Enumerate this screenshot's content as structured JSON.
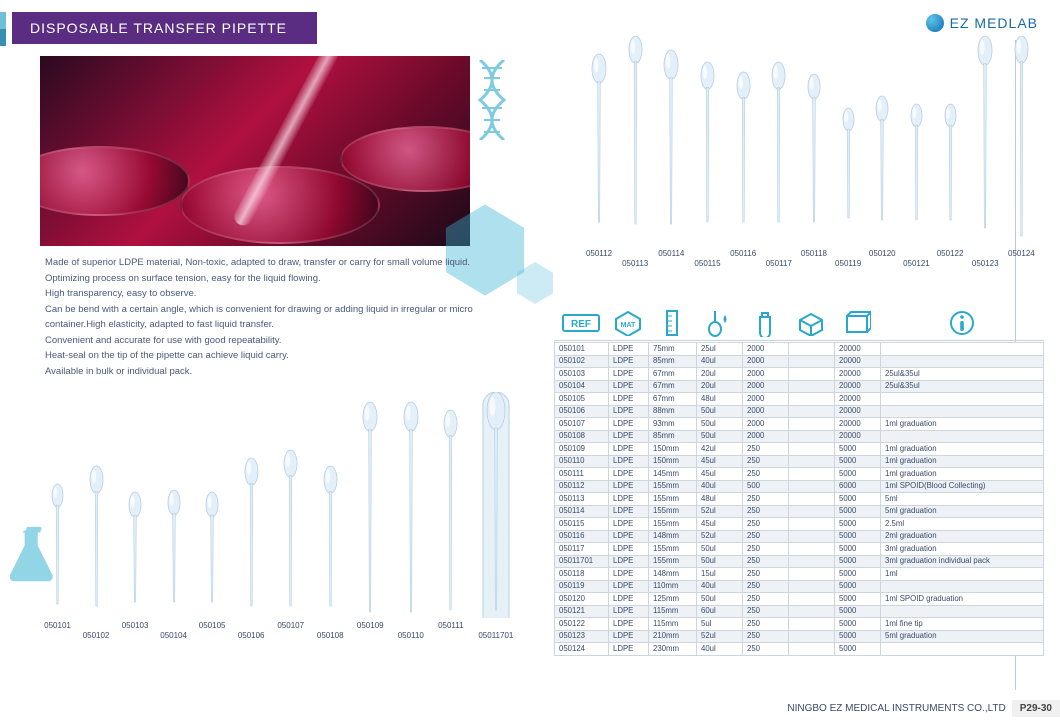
{
  "title": "DISPOSABLE  TRANSFER PIPETTE",
  "brand": "EZ MEDLAB",
  "footer_company": "NINGBO EZ MEDICAL INSTRUMENTS CO.,LTD",
  "footer_page": "P29-30",
  "colors": {
    "title_bg": "#5b2d82",
    "accent": "#2aa8cc",
    "text": "#3a4a6a",
    "row_alt": "#eef2f6",
    "border": "#cdd6dd"
  },
  "description": [
    "Made of superior LDPE material, Non-toxic, adapted to draw, transfer or carry for small volume liquid.",
    "Optimizing process on surface tension, easy for the liquid flowing.",
    "High transparency, easy to observe.",
    "Can be bend with a certain angle, which is convenient for drawing or adding liquid in irregular or micro container.High elasticity, adapted to fast liquid transfer.",
    "Convenient and accurate for use with good repeatability.",
    "Heat-seal on the tip of the pipette can achieve  liquid carry.",
    "Available in bulk or individual pack."
  ],
  "pipettes_top": [
    {
      "id": "050112",
      "bulb": 14,
      "stem": 168,
      "off": 18
    },
    {
      "id": "050113",
      "bulb": 13,
      "stem": 188,
      "off": 0
    },
    {
      "id": "050114",
      "bulb": 14,
      "stem": 174,
      "off": 14
    },
    {
      "id": "050115",
      "bulb": 13,
      "stem": 160,
      "off": 26
    },
    {
      "id": "050116",
      "bulb": 13,
      "stem": 150,
      "off": 36
    },
    {
      "id": "050117",
      "bulb": 13,
      "stem": 160,
      "off": 26
    },
    {
      "id": "050118",
      "bulb": 12,
      "stem": 148,
      "off": 38
    },
    {
      "id": "050119",
      "bulb": 11,
      "stem": 110,
      "off": 72
    },
    {
      "id": "050120",
      "bulb": 12,
      "stem": 124,
      "off": 60
    },
    {
      "id": "050121",
      "bulb": 11,
      "stem": 116,
      "off": 68
    },
    {
      "id": "050122",
      "bulb": 11,
      "stem": 116,
      "off": 68
    },
    {
      "id": "050123",
      "bulb": 14,
      "stem": 192,
      "off": 0
    },
    {
      "id": "050124",
      "bulb": 13,
      "stem": 200,
      "off": 0
    }
  ],
  "pipettes_bottom": [
    {
      "id": "050101",
      "bulb": 11,
      "stem": 120,
      "off": 92
    },
    {
      "id": "050102",
      "bulb": 13,
      "stem": 140,
      "off": 74
    },
    {
      "id": "050103",
      "bulb": 12,
      "stem": 110,
      "off": 100
    },
    {
      "id": "050104",
      "bulb": 12,
      "stem": 112,
      "off": 98
    },
    {
      "id": "050105",
      "bulb": 12,
      "stem": 110,
      "off": 100
    },
    {
      "id": "050106",
      "bulb": 13,
      "stem": 148,
      "off": 66
    },
    {
      "id": "050107",
      "bulb": 13,
      "stem": 156,
      "off": 58
    },
    {
      "id": "050108",
      "bulb": 13,
      "stem": 140,
      "off": 74
    },
    {
      "id": "050109",
      "bulb": 14,
      "stem": 210,
      "off": 10
    },
    {
      "id": "050110",
      "bulb": 14,
      "stem": 210,
      "off": 10
    },
    {
      "id": "050111",
      "bulb": 13,
      "stem": 200,
      "off": 18
    },
    {
      "id": "0501170",
      "bulb": 18,
      "stem": 218,
      "off": 0,
      "pack": true,
      "label": "05011701"
    }
  ],
  "table": {
    "header_icons": [
      "REF",
      "MAT",
      "ruler",
      "drop",
      "bottle",
      "box",
      "carton",
      "info"
    ],
    "rows": [
      [
        "050101",
        "LDPE",
        "75mm",
        "25ul",
        "2000",
        "",
        "20000",
        ""
      ],
      [
        "050102",
        "LDPE",
        "85mm",
        "40ul",
        "2000",
        "",
        "20000",
        ""
      ],
      [
        "050103",
        "LDPE",
        "67mm",
        "20ul",
        "2000",
        "",
        "20000",
        "25ul&35ul"
      ],
      [
        "050104",
        "LDPE",
        "67mm",
        "20ul",
        "2000",
        "",
        "20000",
        "25ul&35ul"
      ],
      [
        "050105",
        "LDPE",
        "67mm",
        "48ul",
        "2000",
        "",
        "20000",
        ""
      ],
      [
        "050106",
        "LDPE",
        "88mm",
        "50ul",
        "2000",
        "",
        "20000",
        ""
      ],
      [
        "050107",
        "LDPE",
        "93mm",
        "50ul",
        "2000",
        "",
        "20000",
        "1ml graduation"
      ],
      [
        "050108",
        "LDPE",
        "85mm",
        "50ul",
        "2000",
        "",
        "20000",
        ""
      ],
      [
        "050109",
        "LDPE",
        "150mm",
        "42ul",
        "250",
        "",
        "5000",
        "1ml graduation"
      ],
      [
        "050110",
        "LDPE",
        "150mm",
        "45ul",
        "250",
        "",
        "5000",
        "1ml graduation"
      ],
      [
        "050111",
        "LDPE",
        "145mm",
        "45ul",
        "250",
        "",
        "5000",
        "1ml graduation"
      ],
      [
        "050112",
        "LDPE",
        "155mm",
        "40ul",
        "500",
        "",
        "6000",
        "1ml SPOID(Blood Collecting)"
      ],
      [
        "050113",
        "LDPE",
        "155mm",
        "48ul",
        "250",
        "",
        "5000",
        "5ml"
      ],
      [
        "050114",
        "LDPE",
        "155mm",
        "52ul",
        "250",
        "",
        "5000",
        "5ml graduation"
      ],
      [
        "050115",
        "LDPE",
        "155mm",
        "45ul",
        "250",
        "",
        "5000",
        "2.5ml"
      ],
      [
        "050116",
        "LDPE",
        "148mm",
        "52ul",
        "250",
        "",
        "5000",
        "2ml graduation"
      ],
      [
        "050117",
        "LDPE",
        "155mm",
        "50ul",
        "250",
        "",
        "5000",
        "3ml graduation"
      ],
      [
        "05011701",
        "LDPE",
        "155mm",
        "50ul",
        "250",
        "",
        "5000",
        "3ml graduation individual pack"
      ],
      [
        "050118",
        "LDPE",
        "148mm",
        "15ul",
        "250",
        "",
        "5000",
        "1ml"
      ],
      [
        "050119",
        "LDPE",
        "110mm",
        "40ul",
        "250",
        "",
        "5000",
        ""
      ],
      [
        "050120",
        "LDPE",
        "125mm",
        "50ul",
        "250",
        "",
        "5000",
        "1ml SPOID graduation"
      ],
      [
        "050121",
        "LDPE",
        "115mm",
        "60ul",
        "250",
        "",
        "5000",
        ""
      ],
      [
        "050122",
        "LDPE",
        "115mm",
        "5ul",
        "250",
        "",
        "5000",
        "1ml fine tip"
      ],
      [
        "050123",
        "LDPE",
        "210mm",
        "52ul",
        "250",
        "",
        "5000",
        "5ml graduation"
      ],
      [
        "050124",
        "LDPE",
        "230mm",
        "40ul",
        "250",
        "",
        "5000",
        ""
      ]
    ]
  }
}
